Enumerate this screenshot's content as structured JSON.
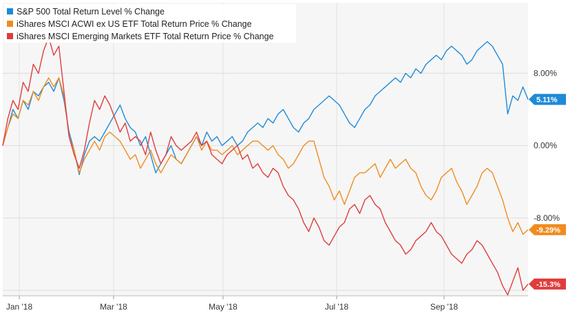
{
  "chart_data": {
    "type": "line",
    "title": "",
    "xlabel": "",
    "ylabel": "",
    "ylim": [
      -16.6,
      15.8
    ],
    "x_axis_labels": [
      "Jan '18",
      "Mar '18",
      "May '18",
      "Jul '18",
      "Sep '18"
    ],
    "y_axis_labels": [
      "8.00%",
      "0.00%",
      "-8.00%"
    ],
    "y_ticks": [
      8,
      0,
      -8
    ],
    "grid": true,
    "legend_placement": "top-left",
    "series": [
      {
        "name": "S&P 500 Total Return Level % Change",
        "color": "#1f8ad6",
        "last_label": "5.11%",
        "values": [
          0.0,
          2.0,
          4.0,
          3.0,
          5.0,
          4.0,
          6.0,
          5.5,
          6.5,
          7.0,
          6.0,
          7.5,
          5.0,
          1.5,
          -0.5,
          -3.2,
          -1.0,
          0.5,
          1.0,
          0.5,
          1.5,
          2.5,
          3.5,
          4.5,
          3.0,
          2.0,
          1.5,
          0.0,
          1.0,
          -1.0,
          -3.0,
          -2.0,
          -1.0,
          0.0,
          -1.5,
          -2.0,
          -1.0,
          0.0,
          1.0,
          0.0,
          1.5,
          0.5,
          1.0,
          0.0,
          0.5,
          1.0,
          0.0,
          0.5,
          1.5,
          2.0,
          2.5,
          2.0,
          3.0,
          2.5,
          3.5,
          4.0,
          3.0,
          2.0,
          1.5,
          2.5,
          3.0,
          4.0,
          4.5,
          5.0,
          5.5,
          5.0,
          4.5,
          3.5,
          2.5,
          2.0,
          3.0,
          4.0,
          4.5,
          5.5,
          6.0,
          6.5,
          7.0,
          7.5,
          7.0,
          8.0,
          7.5,
          8.5,
          8.0,
          9.0,
          9.5,
          10.0,
          9.5,
          10.5,
          11.0,
          10.5,
          10.0,
          9.0,
          9.5,
          10.5,
          11.0,
          11.5,
          11.0,
          10.0,
          9.0,
          3.5,
          5.5,
          5.0,
          6.5,
          5.11
        ]
      },
      {
        "name": "iShares MSCI ACWI ex US ETF Total Return Price % Change",
        "color": "#f08c1e",
        "last_label": "-9.29%",
        "values": [
          0.0,
          2.0,
          3.5,
          3.0,
          5.0,
          4.5,
          6.0,
          5.0,
          6.5,
          7.5,
          6.5,
          7.5,
          5.5,
          1.0,
          -0.5,
          -3.0,
          -1.5,
          -0.5,
          0.5,
          -0.5,
          1.0,
          1.5,
          1.0,
          0.5,
          -0.5,
          -1.5,
          -1.0,
          -2.5,
          -1.5,
          -0.5,
          -2.0,
          -3.0,
          -2.0,
          -1.0,
          -1.5,
          -2.0,
          -1.0,
          0.0,
          1.0,
          -0.5,
          0.5,
          -0.5,
          -0.5,
          -1.0,
          -0.5,
          0.0,
          -1.0,
          -0.5,
          0.0,
          0.5,
          0.5,
          0.0,
          -0.5,
          0.0,
          -1.0,
          -1.5,
          -2.5,
          -2.0,
          -1.0,
          0.0,
          0.5,
          0.5,
          -1.5,
          -3.5,
          -4.5,
          -6.0,
          -5.0,
          -6.5,
          -5.0,
          -3.5,
          -3.0,
          -3.0,
          -2.5,
          -2.0,
          -3.5,
          -2.5,
          -1.5,
          -2.5,
          -2.0,
          -1.5,
          -2.5,
          -3.0,
          -4.5,
          -5.5,
          -6.0,
          -5.0,
          -3.5,
          -3.0,
          -2.5,
          -4.0,
          -5.0,
          -6.5,
          -5.5,
          -4.5,
          -3.0,
          -2.5,
          -3.0,
          -4.5,
          -6.0,
          -8.0,
          -9.5,
          -8.5,
          -9.8,
          -9.29
        ]
      },
      {
        "name": "iShares MSCI Emerging Markets ETF Total Return Price % Change",
        "color": "#e03c3c",
        "last_label": "-15.3%",
        "values": [
          0.0,
          3.0,
          5.0,
          4.0,
          7.0,
          6.0,
          9.0,
          8.0,
          10.5,
          12.0,
          10.0,
          11.0,
          6.0,
          1.0,
          -1.0,
          -2.5,
          -0.5,
          2.5,
          5.0,
          4.0,
          5.5,
          4.5,
          3.0,
          1.5,
          2.5,
          0.5,
          1.0,
          0.5,
          -1.0,
          1.5,
          -0.5,
          -2.0,
          -1.0,
          1.0,
          0.0,
          -0.5,
          0.0,
          0.5,
          1.5,
          0.0,
          0.5,
          -1.0,
          -1.5,
          -2.0,
          -1.0,
          -0.5,
          0.0,
          -1.5,
          -1.0,
          -2.5,
          -2.0,
          -3.0,
          -3.5,
          -2.5,
          -3.0,
          -4.5,
          -5.5,
          -6.0,
          -7.0,
          -8.5,
          -9.5,
          -8.0,
          -9.0,
          -10.5,
          -11.0,
          -10.0,
          -9.0,
          -8.5,
          -7.0,
          -6.5,
          -7.5,
          -6.0,
          -5.5,
          -6.5,
          -7.0,
          -8.5,
          -9.5,
          -10.5,
          -11.0,
          -12.0,
          -11.5,
          -10.5,
          -10.0,
          -9.5,
          -8.5,
          -9.5,
          -10.0,
          -11.0,
          -12.0,
          -12.5,
          -13.0,
          -12.0,
          -11.5,
          -10.5,
          -11.0,
          -12.0,
          -13.0,
          -14.0,
          -15.5,
          -16.5,
          -15.0,
          -13.5,
          -16.0,
          -15.3
        ]
      }
    ]
  }
}
